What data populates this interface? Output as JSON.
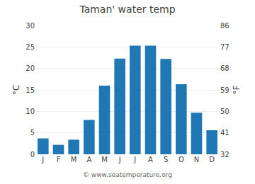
{
  "chart_data": {
    "type": "bar",
    "title": "Taman' water temp",
    "categories": [
      "J",
      "F",
      "M",
      "A",
      "M",
      "J",
      "J",
      "A",
      "S",
      "O",
      "N",
      "D"
    ],
    "values": [
      3.7,
      2.2,
      3.4,
      8.0,
      16.0,
      22.3,
      25.3,
      25.3,
      22.2,
      16.3,
      9.7,
      5.6
    ],
    "ylabel": "°C",
    "y2label": "°F",
    "ylim": [
      0,
      30
    ],
    "yticks": [
      0,
      5,
      10,
      15,
      20,
      25,
      30
    ],
    "y2lim": [
      32,
      86
    ],
    "y2ticks": [
      32,
      41,
      50,
      59,
      68,
      77,
      86
    ],
    "grid": true,
    "annotations": [
      "© www.seatemperature.org"
    ]
  }
}
